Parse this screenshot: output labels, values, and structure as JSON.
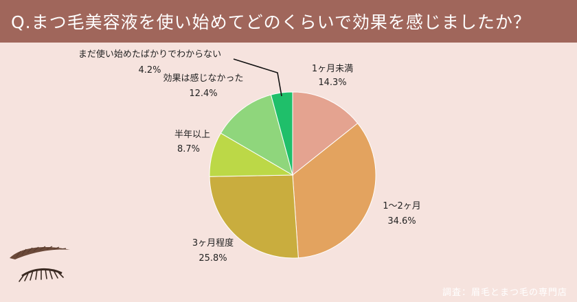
{
  "header": {
    "title": "Q.まつ毛美容液を使い始めてどのくらいで効果を感じましたか？",
    "background_color": "#a0665b"
  },
  "chart_data": {
    "type": "pie",
    "title": "Q.まつ毛美容液を使い始めてどのくらいで効果を感じましたか？",
    "start_angle_deg": 0,
    "direction": "clockwise",
    "slices": [
      {
        "label": "1ヶ月未満",
        "value": 14.3,
        "value_label": "14.3%",
        "color": "#e4a390"
      },
      {
        "label": "1〜2ヶ月",
        "value": 34.6,
        "value_label": "34.6%",
        "color": "#e3a35f"
      },
      {
        "label": "3ヶ月程度",
        "value": 25.8,
        "value_label": "25.8%",
        "color": "#c9ad3e"
      },
      {
        "label": "半年以上",
        "value": 8.7,
        "value_label": "8.7%",
        "color": "#bcd847"
      },
      {
        "label": "効果は感じなかった",
        "value": 12.4,
        "value_label": "12.4%",
        "color": "#8fd67c"
      },
      {
        "label": "まだ使い始めたばかりでわからない",
        "value": 4.2,
        "value_label": "4.2%",
        "color": "#1fbf6a"
      }
    ]
  },
  "source": {
    "text": "調査：眉毛とまつ毛の専門店"
  },
  "decoration": {
    "icon": "eyebrow-eyelash-icon"
  }
}
